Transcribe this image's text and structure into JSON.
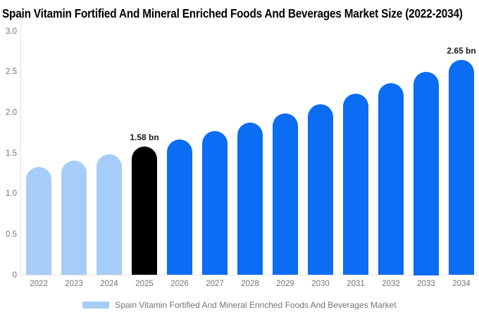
{
  "title": "Spain Vitamin Fortified And Mineral Enriched Foods And Beverages Market Size (2022-2034)",
  "chart_data": {
    "type": "bar",
    "title": "Spain Vitamin Fortified And Mineral Enriched Foods And Beverages Market Size (2022-2034)",
    "categories": [
      "2022",
      "2023",
      "2024",
      "2025",
      "2026",
      "2027",
      "2028",
      "2029",
      "2030",
      "2031",
      "2032",
      "2033",
      "2034"
    ],
    "values": [
      1.33,
      1.41,
      1.49,
      1.58,
      1.67,
      1.77,
      1.88,
      1.99,
      2.1,
      2.23,
      2.36,
      2.5,
      2.65
    ],
    "bar_colors": [
      "#A5CDF8",
      "#A5CDF8",
      "#A5CDF8",
      "#000000",
      "#0B6CF4",
      "#0B6CF4",
      "#0B6CF4",
      "#0B6CF4",
      "#0B6CF4",
      "#0B6CF4",
      "#0B6CF4",
      "#0B6CF4",
      "#0B6CF4"
    ],
    "data_labels": {
      "2025": "1.58 bn",
      "2034": "2.65 bn"
    },
    "xlabel": "",
    "ylabel": "",
    "ylim": [
      0,
      3.0
    ],
    "yticks": [
      "3.0",
      "2.5",
      "2.0",
      "1.5",
      "1.0",
      "0.5",
      "0"
    ],
    "ytick_values": [
      3.0,
      2.5,
      2.0,
      1.5,
      1.0,
      0.5,
      0
    ],
    "grid": "off",
    "legend_position": "bottom"
  },
  "legend": {
    "label": "Spain Vitamin Fortified And Mineral Enriched Foods And Beverages Market",
    "swatch_color": "#A5CDF8"
  },
  "colors": {
    "historical_bar": "#A5CDF8",
    "current_year_bar": "#000000",
    "forecast_bar": "#0B6CF4",
    "axis_text": "#757575",
    "axis_line": "#E2E2E2",
    "title_text": "#000000",
    "data_label_text": "#1B1B1B",
    "background": "#FFFFFF"
  }
}
